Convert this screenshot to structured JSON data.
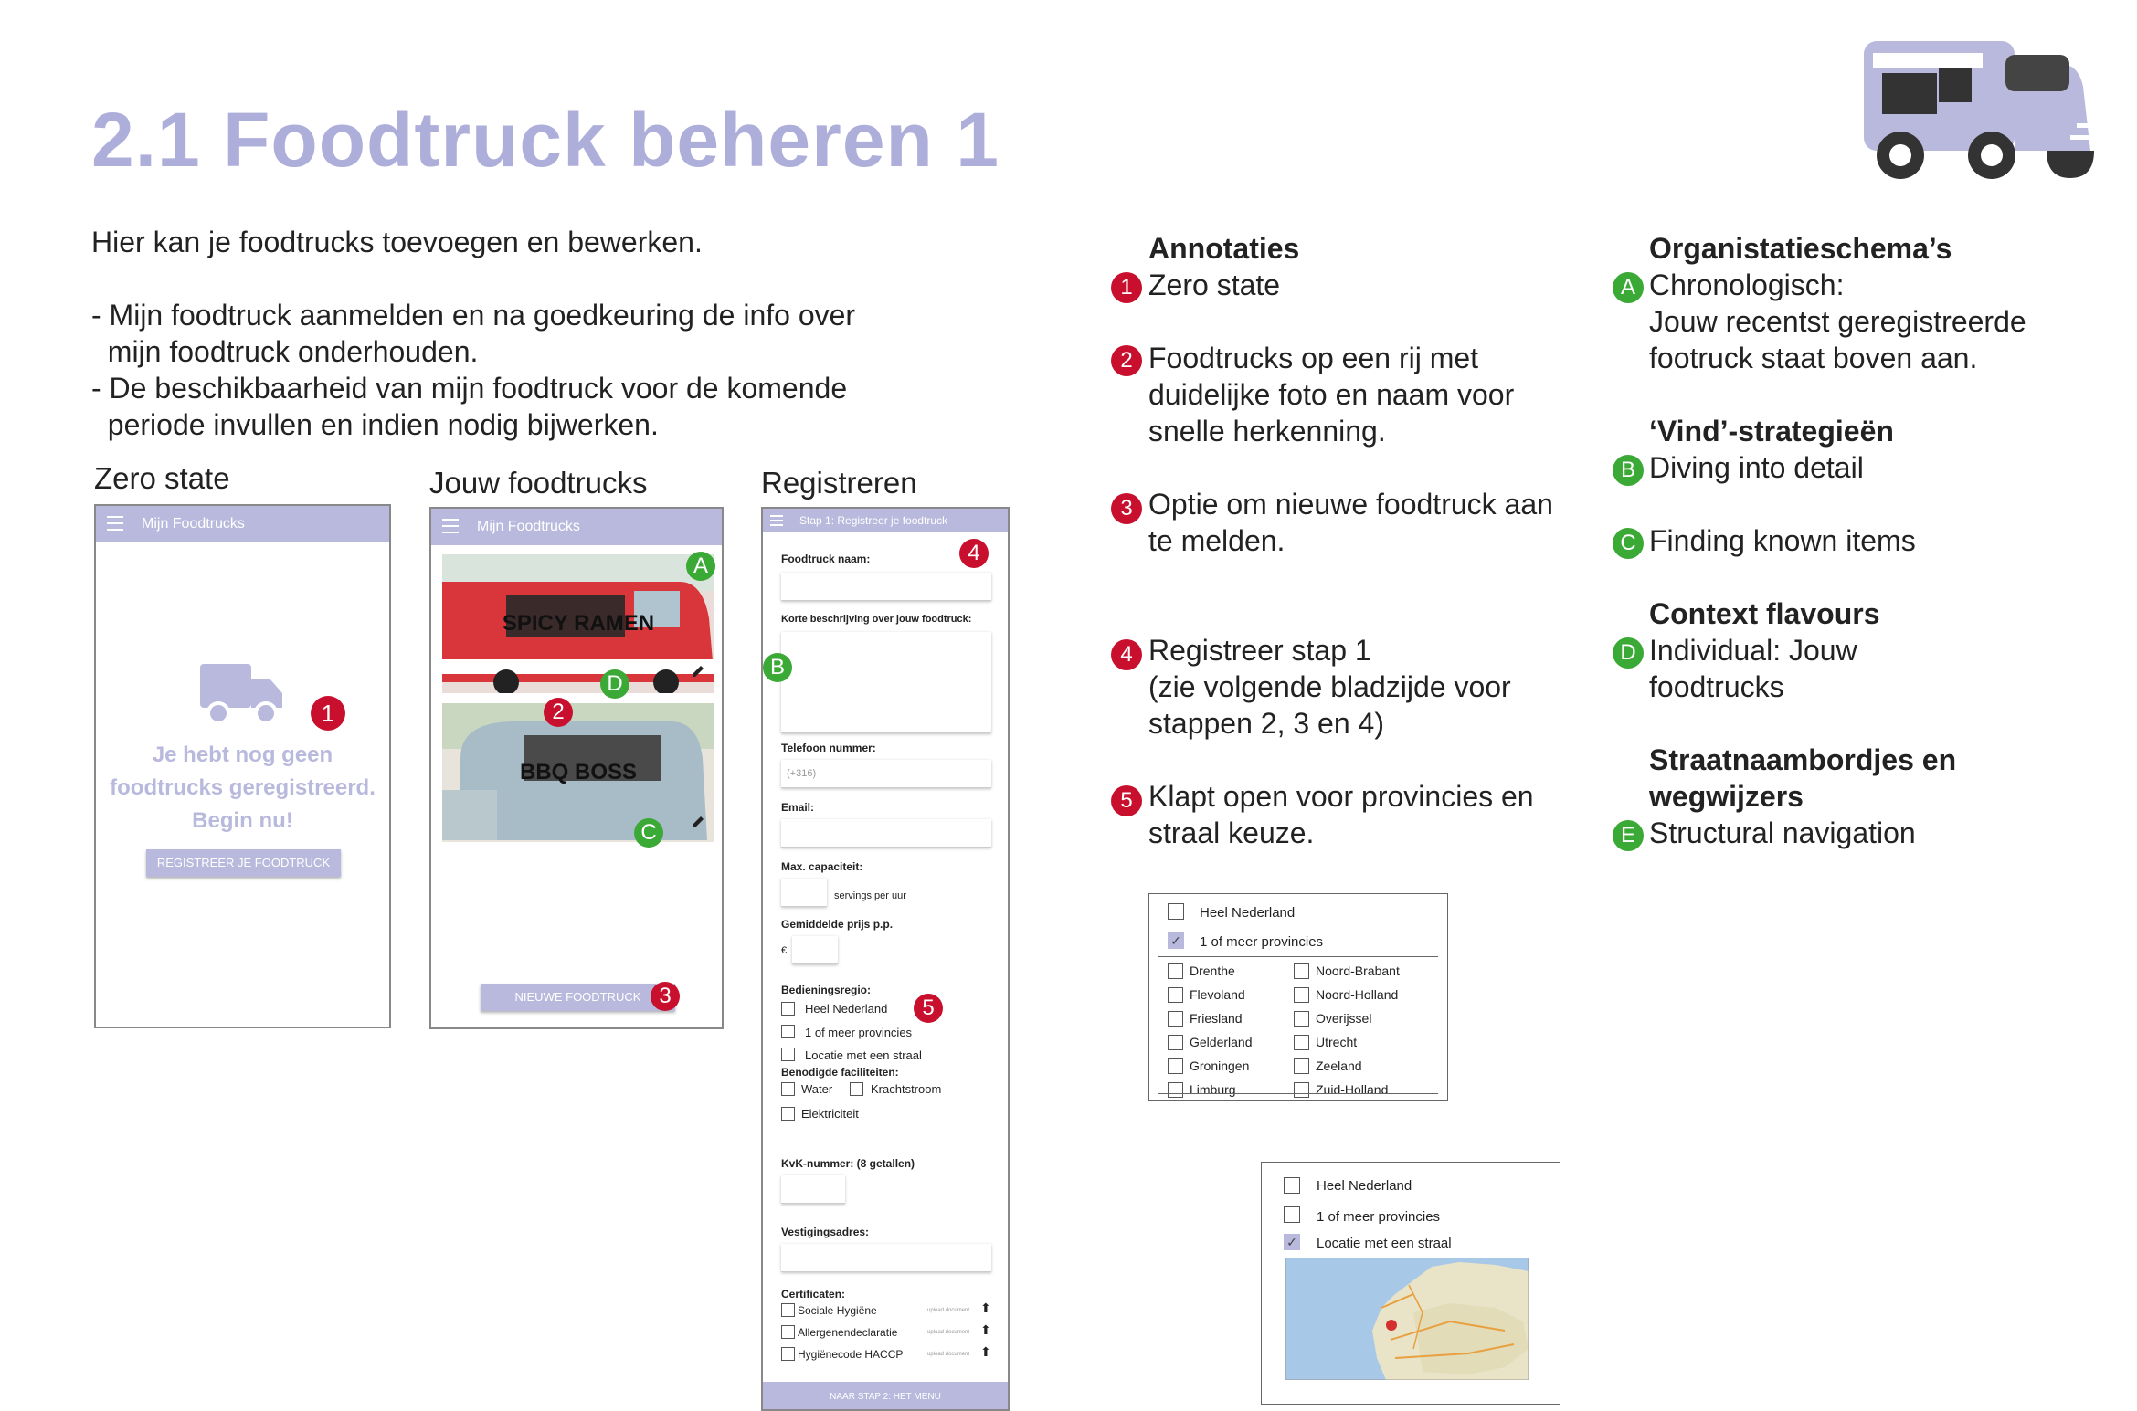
{
  "title": "2.1 Foodtruck beheren 1",
  "intro": {
    "line1": "Hier kan je foodtrucks toevoegen en bewerken.",
    "bullet1a": "- Mijn foodtruck aanmelden en na goedkeuring de info over",
    "bullet1b": "  mijn foodtruck onderhouden.",
    "bullet2a": "- De beschikbaarheid van mijn foodtruck voor de komende",
    "bullet2b": "  periode invullen en indien nodig bijwerken."
  },
  "screens": {
    "zero": {
      "label": "Zero state",
      "bar_title": "Mijn Foodtrucks",
      "empty_line1": "Je hebt nog geen",
      "empty_line2": "foodtrucks geregistreerd.",
      "empty_line3": "Begin nu!",
      "button": "REGISTREER JE FOODTRUCK"
    },
    "mine": {
      "label": "Jouw foodtrucks",
      "bar_title": "Mijn Foodtrucks",
      "trucks": [
        "SPICY RAMEN",
        "BBQ BOSS"
      ],
      "button": "NIEUWE FOODTRUCK"
    },
    "register": {
      "label": "Registreren",
      "bar_title": "Stap 1: Registreer je foodtruck",
      "name_label": "Foodtruck naam:",
      "desc_label": "Korte beschrijving over jouw foodtruck:",
      "phone_label": "Telefoon nummer:",
      "phone_placeholder": "(+316)",
      "email_label": "Email:",
      "capacity_label": "Max. capaciteit:",
      "capacity_unit": "servings per uur",
      "price_label": "Gemiddelde prijs p.p.",
      "currency": "€",
      "region_label": "Bedieningsregio:",
      "region_options": [
        "Heel Nederland",
        "1 of meer provincies",
        "Locatie met een straal"
      ],
      "facilities_label": "Benodigde faciliteiten:",
      "facilities": [
        "Water",
        "Krachtstroom",
        "Elektriciteit"
      ],
      "kvk_label": "KvK-nummer: (8 getallen)",
      "address_label": "Vestigingsadres:",
      "certs_label": "Certificaten:",
      "certs": [
        "Sociale Hygiëne",
        "Allergenendeclaratie",
        "Hygiënecode HACCP"
      ],
      "upload_hint": "upload document",
      "next_button": "NAAR STAP 2: HET MENU"
    }
  },
  "annotations": {
    "heading": "Annotaties",
    "items": [
      {
        "n": "1",
        "text": [
          "Zero state"
        ]
      },
      {
        "n": "2",
        "text": [
          "Foodtrucks op een rij met",
          "duidelijke foto en naam voor",
          "snelle herkenning."
        ]
      },
      {
        "n": "3",
        "text": [
          "Optie om nieuwe foodtruck aan",
          "te melden."
        ]
      },
      {
        "n": "4",
        "text": [
          "Registreer stap 1",
          "(zie volgende bladzijde voor",
          "stappen 2, 3 en 4)"
        ]
      },
      {
        "n": "5",
        "text": [
          "Klapt open voor provincies en",
          "straal keuze."
        ]
      }
    ]
  },
  "schemas": {
    "org_heading": "Organistatieschema’s",
    "A": {
      "n": "A",
      "text": [
        "Chronologisch:",
        "Jouw recentst geregistreerde",
        "footruck staat boven aan."
      ]
    },
    "find_heading": "‘Vind’-strategieën",
    "B": {
      "n": "B",
      "text": [
        "Diving into detail"
      ]
    },
    "C": {
      "n": "C",
      "text": [
        "Finding known items"
      ]
    },
    "context_heading": "Context flavours",
    "D": {
      "n": "D",
      "text": [
        "Individual: Jouw",
        "foodtrucks"
      ]
    },
    "signs_heading1": "Straatnaambordjes en",
    "signs_heading2": "wegwijzers",
    "E": {
      "n": "E",
      "text": [
        "Structural navigation"
      ]
    }
  },
  "province_panel": {
    "option1": "Heel Nederland",
    "option2": "1 of meer provincies",
    "option2_checked": true,
    "col1": [
      "Drenthe",
      "Flevoland",
      "Friesland",
      "Gelderland",
      "Groningen",
      "Limburg"
    ],
    "col2": [
      "Noord-Brabant",
      "Noord-Holland",
      "Overijssel",
      "Utrecht",
      "Zeeland",
      "Zuid-Holland"
    ]
  },
  "radius_panel": {
    "option1": "Heel Nederland",
    "option2": "1 of meer provincies",
    "option3": "Locatie met een straal",
    "option3_checked": true
  },
  "colors": {
    "accent": "#aeaedb",
    "bar": "#b9b9dd",
    "red_badge": "#c8102e",
    "green_badge": "#3aa935"
  }
}
